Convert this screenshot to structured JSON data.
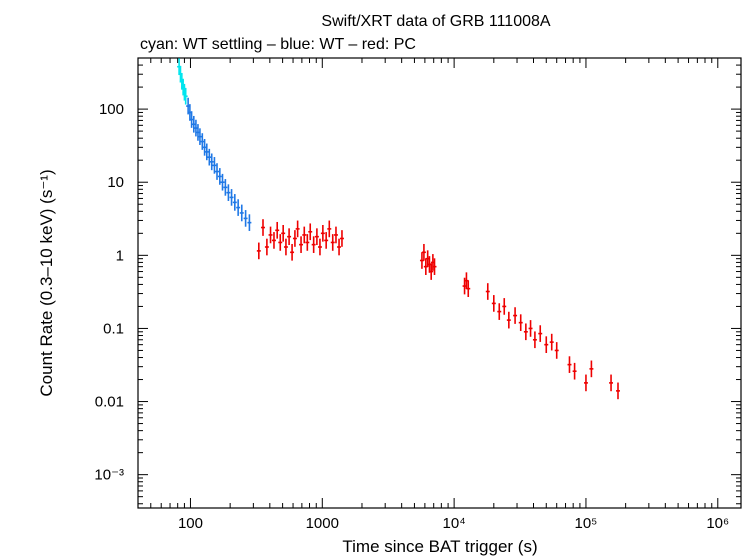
{
  "chart_data": {
    "type": "scatter",
    "title": "Swift/XRT data of GRB 111008A",
    "subtitle": "cyan: WT settling – blue: WT – red: PC",
    "xlabel": "Time since BAT trigger (s)",
    "ylabel": "Count Rate (0.3–10 keV) (s⁻¹)",
    "x_scale": "log",
    "y_scale": "log",
    "xlim": [
      40,
      1500000
    ],
    "ylim": [
      0.00035,
      500
    ],
    "grid": false,
    "x_ticks": [
      {
        "value": 100,
        "label": "100"
      },
      {
        "value": 1000,
        "label": "1000"
      },
      {
        "value": 10000,
        "label": "10⁴"
      },
      {
        "value": 100000,
        "label": "10⁵"
      },
      {
        "value": 1000000,
        "label": "10⁶"
      }
    ],
    "y_ticks": [
      {
        "value": 100,
        "label": "100"
      },
      {
        "value": 10,
        "label": "10"
      },
      {
        "value": 1,
        "label": "1"
      },
      {
        "value": 0.1,
        "label": "0.1"
      },
      {
        "value": 0.01,
        "label": "0.01"
      },
      {
        "value": 0.001,
        "label": "10⁻³"
      }
    ],
    "series": [
      {
        "color": "#00e5ee",
        "points": [
          {
            "x": 82,
            "y": 380
          },
          {
            "x": 84,
            "y": 300
          },
          {
            "x": 86,
            "y": 240
          },
          {
            "x": 88,
            "y": 200
          },
          {
            "x": 90,
            "y": 170
          },
          {
            "x": 92,
            "y": 150
          }
        ]
      },
      {
        "color": "#1f78e6",
        "points": [
          {
            "x": 96,
            "y": 110
          },
          {
            "x": 99,
            "y": 90
          },
          {
            "x": 102,
            "y": 72
          },
          {
            "x": 106,
            "y": 62
          },
          {
            "x": 110,
            "y": 55
          },
          {
            "x": 114,
            "y": 48
          },
          {
            "x": 118,
            "y": 42
          },
          {
            "x": 123,
            "y": 36
          },
          {
            "x": 128,
            "y": 30
          },
          {
            "x": 133,
            "y": 26
          },
          {
            "x": 139,
            "y": 22
          },
          {
            "x": 145,
            "y": 19
          },
          {
            "x": 152,
            "y": 17
          },
          {
            "x": 159,
            "y": 14
          },
          {
            "x": 167,
            "y": 12
          },
          {
            "x": 175,
            "y": 10
          },
          {
            "x": 184,
            "y": 8.5
          },
          {
            "x": 194,
            "y": 7.2
          },
          {
            "x": 205,
            "y": 6.2
          },
          {
            "x": 217,
            "y": 5.3
          },
          {
            "x": 230,
            "y": 4.5
          },
          {
            "x": 245,
            "y": 3.8
          },
          {
            "x": 262,
            "y": 3.2
          },
          {
            "x": 280,
            "y": 2.8
          }
        ]
      },
      {
        "color": "#ee0000",
        "points": [
          {
            "x": 330,
            "y": 1.15
          },
          {
            "x": 355,
            "y": 2.4
          },
          {
            "x": 380,
            "y": 1.3
          },
          {
            "x": 405,
            "y": 1.9
          },
          {
            "x": 430,
            "y": 1.6
          },
          {
            "x": 455,
            "y": 2.2
          },
          {
            "x": 480,
            "y": 1.5
          },
          {
            "x": 505,
            "y": 2.0
          },
          {
            "x": 530,
            "y": 1.3
          },
          {
            "x": 560,
            "y": 1.8
          },
          {
            "x": 590,
            "y": 1.1
          },
          {
            "x": 620,
            "y": 1.7
          },
          {
            "x": 650,
            "y": 2.3
          },
          {
            "x": 690,
            "y": 1.4
          },
          {
            "x": 730,
            "y": 1.9
          },
          {
            "x": 770,
            "y": 1.5
          },
          {
            "x": 810,
            "y": 2.1
          },
          {
            "x": 860,
            "y": 1.4
          },
          {
            "x": 910,
            "y": 1.8
          },
          {
            "x": 960,
            "y": 1.3
          },
          {
            "x": 1010,
            "y": 2.0
          },
          {
            "x": 1070,
            "y": 1.6
          },
          {
            "x": 1130,
            "y": 2.3
          },
          {
            "x": 1200,
            "y": 1.5
          },
          {
            "x": 1270,
            "y": 1.9
          },
          {
            "x": 1340,
            "y": 1.3
          },
          {
            "x": 1410,
            "y": 1.7
          },
          {
            "x": 5700,
            "y": 0.85
          },
          {
            "x": 5900,
            "y": 1.1
          },
          {
            "x": 6100,
            "y": 0.7
          },
          {
            "x": 6300,
            "y": 0.9
          },
          {
            "x": 6500,
            "y": 0.75
          },
          {
            "x": 6700,
            "y": 0.6
          },
          {
            "x": 6900,
            "y": 0.8
          },
          {
            "x": 7100,
            "y": 0.7
          },
          {
            "x": 12000,
            "y": 0.38
          },
          {
            "x": 12400,
            "y": 0.45
          },
          {
            "x": 12800,
            "y": 0.35
          },
          {
            "x": 18000,
            "y": 0.32
          },
          {
            "x": 20000,
            "y": 0.22
          },
          {
            "x": 22000,
            "y": 0.17
          },
          {
            "x": 24000,
            "y": 0.2
          },
          {
            "x": 26000,
            "y": 0.13
          },
          {
            "x": 29000,
            "y": 0.15
          },
          {
            "x": 32000,
            "y": 0.12
          },
          {
            "x": 35000,
            "y": 0.09
          },
          {
            "x": 38000,
            "y": 0.1
          },
          {
            "x": 41000,
            "y": 0.07
          },
          {
            "x": 45000,
            "y": 0.085
          },
          {
            "x": 50000,
            "y": 0.06
          },
          {
            "x": 55000,
            "y": 0.065
          },
          {
            "x": 60000,
            "y": 0.05
          },
          {
            "x": 75000,
            "y": 0.032
          },
          {
            "x": 82000,
            "y": 0.026
          },
          {
            "x": 100000,
            "y": 0.018
          },
          {
            "x": 110000,
            "y": 0.028
          },
          {
            "x": 155000,
            "y": 0.018
          },
          {
            "x": 175000,
            "y": 0.014
          }
        ]
      }
    ]
  }
}
